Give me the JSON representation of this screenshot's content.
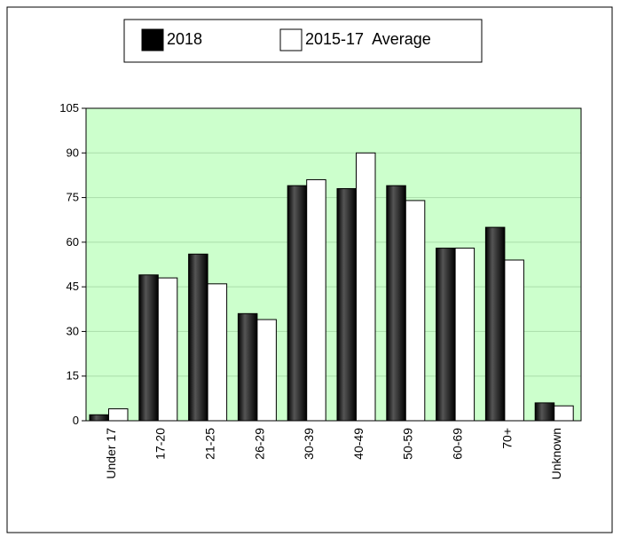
{
  "chart_data": {
    "type": "bar",
    "categories": [
      "Under 17",
      "17-20",
      "21-25",
      "26-29",
      "30-39",
      "40-49",
      "50-59",
      "60-69",
      "70+",
      "Unknown"
    ],
    "series": [
      {
        "name": "2018",
        "color": "#000000",
        "values": [
          2,
          49,
          56,
          36,
          79,
          78,
          79,
          58,
          65,
          6
        ]
      },
      {
        "name": "2015-17  Average",
        "color": "#ffffff",
        "values": [
          4,
          48,
          46,
          34,
          81,
          90,
          74,
          58,
          54,
          5
        ]
      }
    ],
    "ylim": [
      0,
      105
    ],
    "yticks": [
      0,
      15,
      30,
      45,
      60,
      75,
      90,
      105
    ],
    "grid": true,
    "plot_background": "#ccffcc"
  }
}
